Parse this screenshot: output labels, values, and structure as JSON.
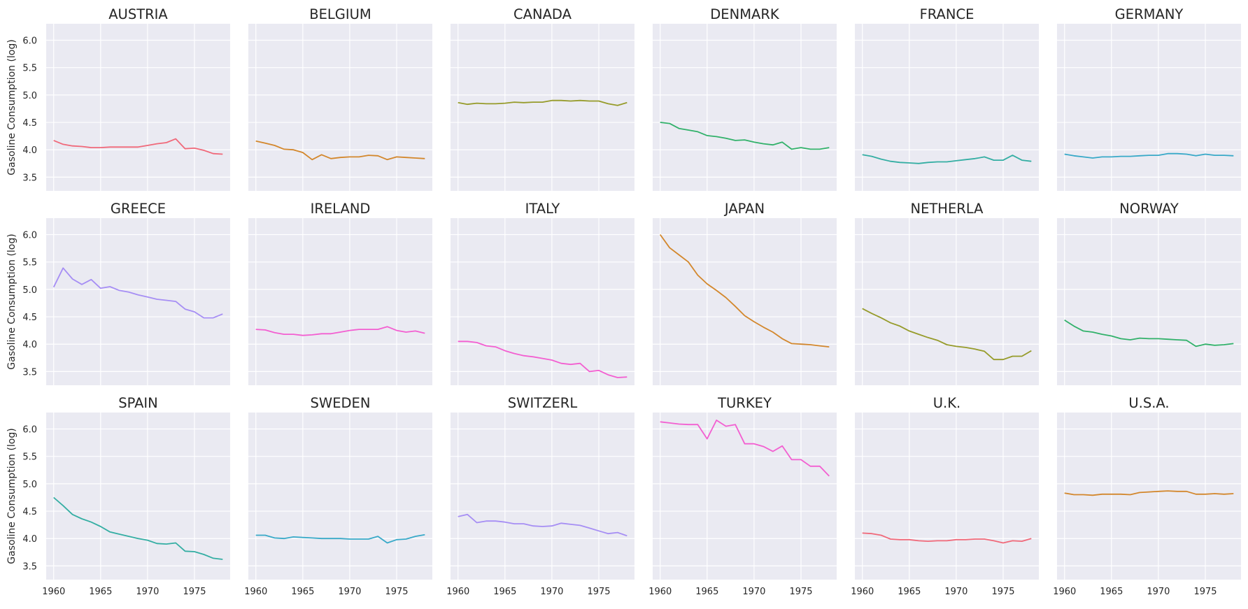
{
  "chart_data": {
    "type": "line",
    "ylabel": "Gasoline Consumption (log)",
    "ylim": [
      3.25,
      6.3
    ],
    "xlim": [
      1959.2,
      1978.8
    ],
    "yticks": [
      3.5,
      4.0,
      4.5,
      5.0,
      5.5,
      6.0
    ],
    "yticklabels": [
      "3.5",
      "4.0",
      "4.5",
      "5.0",
      "5.5",
      "6.0"
    ],
    "xticks": [
      1960,
      1965,
      1970,
      1975
    ],
    "xticklabels": [
      "1960",
      "1965",
      "1970",
      "1975"
    ],
    "grid": true,
    "x": [
      1960,
      1961,
      1962,
      1963,
      1964,
      1965,
      1966,
      1967,
      1968,
      1969,
      1970,
      1971,
      1972,
      1973,
      1974,
      1975,
      1976,
      1977,
      1978
    ],
    "panels": [
      {
        "title": "AUSTRIA",
        "color": "#f0697a",
        "values": [
          4.17,
          4.1,
          4.07,
          4.06,
          4.04,
          4.04,
          4.05,
          4.05,
          4.05,
          4.05,
          4.08,
          4.11,
          4.13,
          4.2,
          4.02,
          4.03,
          3.99,
          3.93,
          3.92
        ]
      },
      {
        "title": "BELGIUM",
        "color": "#d3872c",
        "values": [
          4.16,
          4.12,
          4.08,
          4.01,
          4.0,
          3.95,
          3.82,
          3.91,
          3.84,
          3.86,
          3.87,
          3.87,
          3.9,
          3.89,
          3.82,
          3.87,
          3.86,
          3.85,
          3.84
        ]
      },
      {
        "title": "CANADA",
        "color": "#969b2a",
        "values": [
          4.86,
          4.83,
          4.85,
          4.84,
          4.84,
          4.85,
          4.87,
          4.86,
          4.87,
          4.87,
          4.9,
          4.9,
          4.89,
          4.9,
          4.89,
          4.89,
          4.84,
          4.81,
          4.86
        ]
      },
      {
        "title": "DENMARK",
        "color": "#31b16a",
        "values": [
          4.5,
          4.48,
          4.39,
          4.36,
          4.33,
          4.26,
          4.24,
          4.21,
          4.17,
          4.18,
          4.14,
          4.11,
          4.09,
          4.14,
          4.01,
          4.04,
          4.01,
          4.01,
          4.04
        ]
      },
      {
        "title": "FRANCE",
        "color": "#34aea3",
        "values": [
          3.91,
          3.88,
          3.83,
          3.79,
          3.77,
          3.76,
          3.75,
          3.77,
          3.78,
          3.78,
          3.8,
          3.82,
          3.84,
          3.87,
          3.81,
          3.81,
          3.9,
          3.81,
          3.79
        ]
      },
      {
        "title": "GERMANY",
        "color": "#38a9c8",
        "values": [
          3.92,
          3.89,
          3.87,
          3.85,
          3.87,
          3.87,
          3.88,
          3.88,
          3.89,
          3.9,
          3.9,
          3.93,
          3.93,
          3.92,
          3.89,
          3.92,
          3.9,
          3.9,
          3.89
        ]
      },
      {
        "title": "GREECE",
        "color": "#a68ef4",
        "values": [
          5.04,
          5.39,
          5.19,
          5.09,
          5.18,
          5.02,
          5.05,
          4.98,
          4.95,
          4.9,
          4.86,
          4.82,
          4.8,
          4.78,
          4.64,
          4.59,
          4.48,
          4.48,
          4.55
        ]
      },
      {
        "title": "IRELAND",
        "color": "#f35fd1",
        "values": [
          4.27,
          4.26,
          4.21,
          4.18,
          4.18,
          4.16,
          4.17,
          4.19,
          4.19,
          4.22,
          4.25,
          4.27,
          4.27,
          4.27,
          4.32,
          4.25,
          4.22,
          4.24,
          4.2
        ]
      },
      {
        "title": "ITALY",
        "color": "#f35fd1",
        "values": [
          4.05,
          4.05,
          4.03,
          3.97,
          3.95,
          3.88,
          3.83,
          3.79,
          3.77,
          3.74,
          3.71,
          3.65,
          3.63,
          3.65,
          3.5,
          3.52,
          3.44,
          3.39,
          3.4
        ]
      },
      {
        "title": "JAPAN",
        "color": "#d3872c",
        "values": [
          6.0,
          5.76,
          5.63,
          5.5,
          5.26,
          5.1,
          4.98,
          4.85,
          4.69,
          4.52,
          4.41,
          4.31,
          4.22,
          4.1,
          4.01,
          4.0,
          3.99,
          3.97,
          3.95
        ]
      },
      {
        "title": "NETHERLA",
        "color": "#969b2a",
        "values": [
          4.65,
          4.56,
          4.48,
          4.39,
          4.33,
          4.24,
          4.18,
          4.12,
          4.07,
          3.99,
          3.96,
          3.94,
          3.91,
          3.87,
          3.72,
          3.72,
          3.78,
          3.78,
          3.88
        ]
      },
      {
        "title": "NORWAY",
        "color": "#31b16a",
        "values": [
          4.44,
          4.33,
          4.24,
          4.22,
          4.18,
          4.15,
          4.1,
          4.08,
          4.11,
          4.1,
          4.1,
          4.09,
          4.08,
          4.07,
          3.96,
          4.0,
          3.98,
          3.99,
          4.01
        ]
      },
      {
        "title": "SPAIN",
        "color": "#34aea3",
        "values": [
          4.75,
          4.6,
          4.44,
          4.36,
          4.3,
          4.22,
          4.12,
          4.08,
          4.04,
          4.0,
          3.97,
          3.91,
          3.9,
          3.92,
          3.77,
          3.76,
          3.71,
          3.64,
          3.62
        ]
      },
      {
        "title": "SWEDEN",
        "color": "#38a9c8",
        "values": [
          4.06,
          4.06,
          4.01,
          4.0,
          4.03,
          4.02,
          4.01,
          4.0,
          4.0,
          4.0,
          3.99,
          3.99,
          3.99,
          4.04,
          3.92,
          3.98,
          3.99,
          4.04,
          4.07
        ]
      },
      {
        "title": "SWITZERL",
        "color": "#a68ef4",
        "values": [
          4.4,
          4.44,
          4.29,
          4.32,
          4.32,
          4.3,
          4.27,
          4.27,
          4.23,
          4.22,
          4.23,
          4.28,
          4.26,
          4.24,
          4.19,
          4.14,
          4.09,
          4.11,
          4.05
        ]
      },
      {
        "title": "TURKEY",
        "color": "#f35fd1",
        "values": [
          6.13,
          6.11,
          6.09,
          6.08,
          6.08,
          5.82,
          6.16,
          6.05,
          6.08,
          5.73,
          5.73,
          5.68,
          5.59,
          5.69,
          5.44,
          5.44,
          5.32,
          5.32,
          5.14
        ]
      },
      {
        "title": "U.K.",
        "color": "#f0697a",
        "values": [
          4.1,
          4.09,
          4.06,
          3.99,
          3.98,
          3.98,
          3.96,
          3.95,
          3.96,
          3.96,
          3.98,
          3.98,
          3.99,
          3.99,
          3.96,
          3.92,
          3.96,
          3.95,
          4.0
        ]
      },
      {
        "title": "U.S.A.",
        "color": "#d3872c",
        "values": [
          4.83,
          4.8,
          4.8,
          4.79,
          4.81,
          4.81,
          4.81,
          4.8,
          4.84,
          4.85,
          4.86,
          4.87,
          4.86,
          4.86,
          4.81,
          4.81,
          4.82,
          4.81,
          4.82
        ]
      }
    ]
  }
}
